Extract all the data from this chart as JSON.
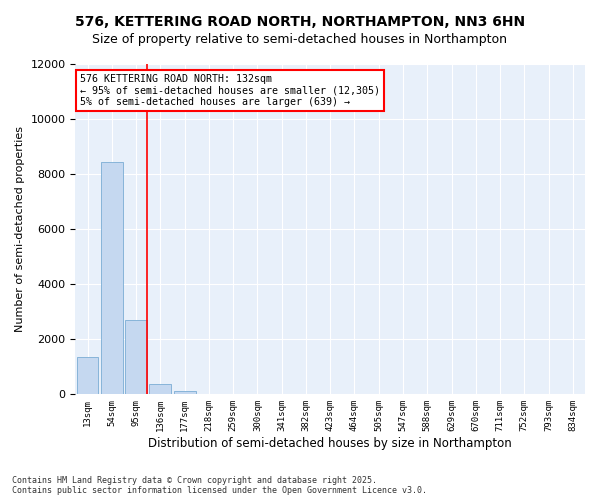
{
  "title": "576, KETTERING ROAD NORTH, NORTHAMPTON, NN3 6HN",
  "subtitle": "Size of property relative to semi-detached houses in Northampton",
  "xlabel": "Distribution of semi-detached houses by size in Northampton",
  "ylabel": "Number of semi-detached properties",
  "categories": [
    "13sqm",
    "54sqm",
    "95sqm",
    "136sqm",
    "177sqm",
    "218sqm",
    "259sqm",
    "300sqm",
    "341sqm",
    "382sqm",
    "423sqm",
    "464sqm",
    "505sqm",
    "547sqm",
    "588sqm",
    "629sqm",
    "670sqm",
    "711sqm",
    "752sqm",
    "793sqm",
    "834sqm"
  ],
  "values": [
    1350,
    8450,
    2700,
    390,
    120,
    30,
    0,
    0,
    0,
    0,
    0,
    0,
    0,
    0,
    0,
    0,
    0,
    0,
    0,
    0,
    0
  ],
  "bar_color": "#c5d8f0",
  "bar_edge_color": "#7aadd4",
  "vline_color": "red",
  "annotation_title": "576 KETTERING ROAD NORTH: 132sqm",
  "annotation_line1": "← 95% of semi-detached houses are smaller (12,305)",
  "annotation_line2": "5% of semi-detached houses are larger (639) →",
  "ylim": [
    0,
    12000
  ],
  "yticks": [
    0,
    2000,
    4000,
    6000,
    8000,
    10000,
    12000
  ],
  "background_color": "#e8f0fa",
  "footnote": "Contains HM Land Registry data © Crown copyright and database right 2025.\nContains public sector information licensed under the Open Government Licence v3.0.",
  "title_fontsize": 10,
  "subtitle_fontsize": 9,
  "xlabel_fontsize": 8.5,
  "ylabel_fontsize": 8
}
